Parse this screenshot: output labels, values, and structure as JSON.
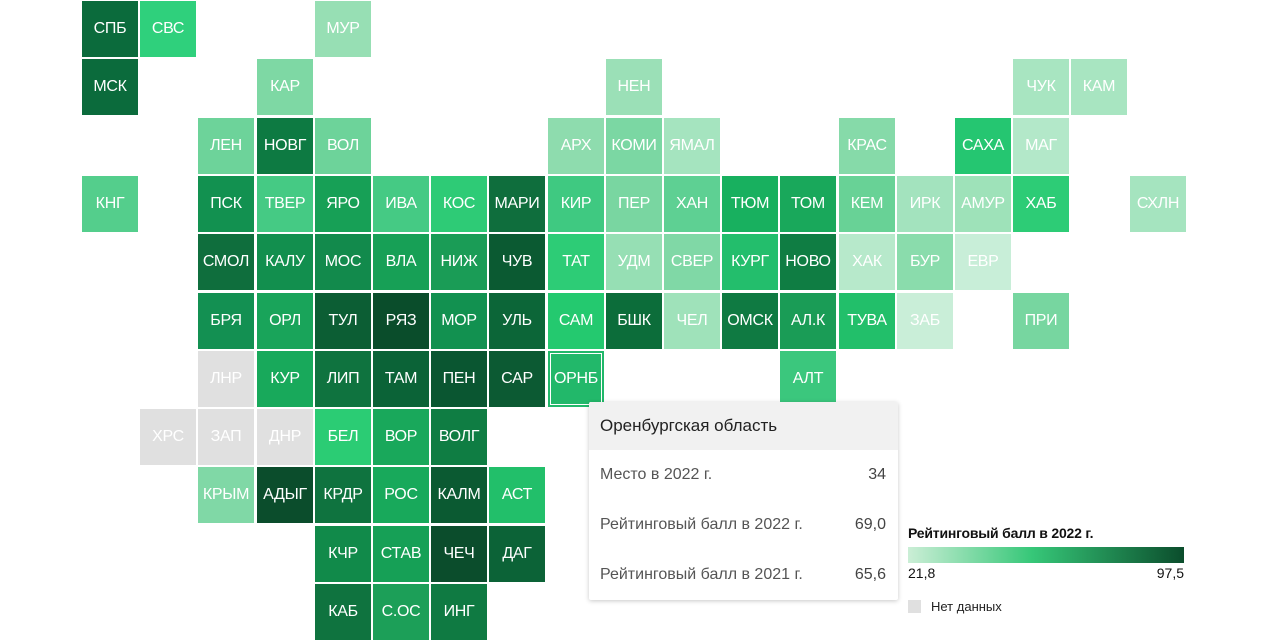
{
  "tiles": [
    {
      "label": "СПБ",
      "col": 0,
      "row": 0,
      "color": "#0b6b3c"
    },
    {
      "label": "СВС",
      "col": 1,
      "row": 0,
      "color": "#2fd07c"
    },
    {
      "label": "МУР",
      "col": 4,
      "row": 0,
      "color": "#97dfb4"
    },
    {
      "label": "МСК",
      "col": 0,
      "row": 1,
      "color": "#0b6b3c"
    },
    {
      "label": "КАР",
      "col": 3,
      "row": 1,
      "color": "#7ed8a4"
    },
    {
      "label": "НЕН",
      "col": 9,
      "row": 1,
      "color": "#9be0b7"
    },
    {
      "label": "ЧУК",
      "col": 16,
      "row": 1,
      "color": "#a8e5c1"
    },
    {
      "label": "КАМ",
      "col": 17,
      "row": 1,
      "color": "#a8e5c1"
    },
    {
      "label": "ЛЕН",
      "col": 2,
      "row": 2,
      "color": "#6dd39a"
    },
    {
      "label": "НОВГ",
      "col": 3,
      "row": 2,
      "color": "#0d7a42"
    },
    {
      "label": "ВОЛ",
      "col": 4,
      "row": 2,
      "color": "#6dd39a"
    },
    {
      "label": "АРХ",
      "col": 8,
      "row": 2,
      "color": "#8edcae"
    },
    {
      "label": "КОМИ",
      "col": 9,
      "row": 2,
      "color": "#7bd7a3"
    },
    {
      "label": "ЯМАЛ",
      "col": 10,
      "row": 2,
      "color": "#a5e4bf"
    },
    {
      "label": "КРАС",
      "col": 13,
      "row": 2,
      "color": "#86daa9"
    },
    {
      "label": "САХА",
      "col": 15,
      "row": 2,
      "color": "#25c671"
    },
    {
      "label": "МАГ",
      "col": 16,
      "row": 2,
      "color": "#b3e8c9"
    },
    {
      "label": "КНГ",
      "col": 0,
      "row": 3,
      "color": "#54ce8c"
    },
    {
      "label": "ПСК",
      "col": 2,
      "row": 3,
      "color": "#129150"
    },
    {
      "label": "ТВЕР",
      "col": 3,
      "row": 3,
      "color": "#45ca84"
    },
    {
      "label": "ЯРО",
      "col": 4,
      "row": 3,
      "color": "#17a056"
    },
    {
      "label": "ИВА",
      "col": 5,
      "row": 3,
      "color": "#45ca84"
    },
    {
      "label": "КОС",
      "col": 6,
      "row": 3,
      "color": "#2ecb76"
    },
    {
      "label": "МАРИ",
      "col": 7,
      "row": 3,
      "color": "#0f6e3d"
    },
    {
      "label": "КИР",
      "col": 8,
      "row": 3,
      "color": "#3fc981"
    },
    {
      "label": "ПЕР",
      "col": 9,
      "row": 3,
      "color": "#79d6a1"
    },
    {
      "label": "ХАН",
      "col": 10,
      "row": 3,
      "color": "#5ed093"
    },
    {
      "label": "ТЮМ",
      "col": 11,
      "row": 3,
      "color": "#18b05f"
    },
    {
      "label": "ТОМ",
      "col": 12,
      "row": 3,
      "color": "#19a85b"
    },
    {
      "label": "КЕМ",
      "col": 13,
      "row": 3,
      "color": "#68d296"
    },
    {
      "label": "ИРК",
      "col": 14,
      "row": 3,
      "color": "#a3e3be"
    },
    {
      "label": "АМУР",
      "col": 15,
      "row": 3,
      "color": "#9ee2b9"
    },
    {
      "label": "ХАБ",
      "col": 16,
      "row": 3,
      "color": "#2dcc76"
    },
    {
      "label": "СХЛН",
      "col": 18,
      "row": 3,
      "color": "#a5e4bf"
    },
    {
      "label": "СМОЛ",
      "col": 2,
      "row": 4,
      "color": "#0f6e3d"
    },
    {
      "label": "КАЛУ",
      "col": 3,
      "row": 4,
      "color": "#128f4e"
    },
    {
      "label": "МОС",
      "col": 4,
      "row": 4,
      "color": "#128a4c"
    },
    {
      "label": "ВЛА",
      "col": 5,
      "row": 4,
      "color": "#17a056"
    },
    {
      "label": "НИЖ",
      "col": 6,
      "row": 4,
      "color": "#1a9c56"
    },
    {
      "label": "ЧУВ",
      "col": 7,
      "row": 4,
      "color": "#0b5a32"
    },
    {
      "label": "ТАТ",
      "col": 8,
      "row": 4,
      "color": "#2dcc76"
    },
    {
      "label": "УДМ",
      "col": 9,
      "row": 4,
      "color": "#96dfb4"
    },
    {
      "label": "СВЕР",
      "col": 10,
      "row": 4,
      "color": "#80d8a6"
    },
    {
      "label": "КУРГ",
      "col": 11,
      "row": 4,
      "color": "#23be6c"
    },
    {
      "label": "НОВО",
      "col": 12,
      "row": 4,
      "color": "#0f7d43"
    },
    {
      "label": "ХАК",
      "col": 13,
      "row": 4,
      "color": "#b7e9cb"
    },
    {
      "label": "БУР",
      "col": 14,
      "row": 4,
      "color": "#8adcac"
    },
    {
      "label": "ЕВР",
      "col": 15,
      "row": 4,
      "color": "#c8eed8"
    },
    {
      "label": "БРЯ",
      "col": 2,
      "row": 5,
      "color": "#139052"
    },
    {
      "label": "ОРЛ",
      "col": 3,
      "row": 5,
      "color": "#19a45a"
    },
    {
      "label": "ТУЛ",
      "col": 4,
      "row": 5,
      "color": "#0c5e34"
    },
    {
      "label": "РЯЗ",
      "col": 5,
      "row": 5,
      "color": "#0a4d2b"
    },
    {
      "label": "МОР",
      "col": 6,
      "row": 5,
      "color": "#129150"
    },
    {
      "label": "УЛЬ",
      "col": 7,
      "row": 5,
      "color": "#0c6638"
    },
    {
      "label": "САМ",
      "col": 8,
      "row": 5,
      "color": "#24c96f"
    },
    {
      "label": "БШК",
      "col": 9,
      "row": 5,
      "color": "#0c6d3a"
    },
    {
      "label": "ЧЕЛ",
      "col": 10,
      "row": 5,
      "color": "#9fe2ba"
    },
    {
      "label": "ОМСК",
      "col": 11,
      "row": 5,
      "color": "#0f7a42"
    },
    {
      "label": "АЛ.К",
      "col": 12,
      "row": 5,
      "color": "#1a9c56"
    },
    {
      "label": "ТУВА",
      "col": 13,
      "row": 5,
      "color": "#22bf6a"
    },
    {
      "label": "ЗАБ",
      "col": 14,
      "row": 5,
      "color": "#c9eed8"
    },
    {
      "label": "ПРИ",
      "col": 16,
      "row": 5,
      "color": "#77d6a0"
    },
    {
      "label": "ЛНР",
      "col": 2,
      "row": 6,
      "color": "#e0e0e0"
    },
    {
      "label": "КУР",
      "col": 3,
      "row": 6,
      "color": "#18a95b"
    },
    {
      "label": "ЛИП",
      "col": 4,
      "row": 6,
      "color": "#0f733f"
    },
    {
      "label": "ТАМ",
      "col": 5,
      "row": 6,
      "color": "#0b6337"
    },
    {
      "label": "ПЕН",
      "col": 6,
      "row": 6,
      "color": "#0a5631"
    },
    {
      "label": "САР",
      "col": 7,
      "row": 6,
      "color": "#0c5a33"
    },
    {
      "label": "ОРНБ",
      "col": 8,
      "row": 6,
      "color": "#22b86a",
      "selected": true
    },
    {
      "label": "АЛТ",
      "col": 12,
      "row": 6,
      "color": "#3bc77d"
    },
    {
      "label": "ХРС",
      "col": 1,
      "row": 7,
      "color": "#e0e0e0"
    },
    {
      "label": "ЗАП",
      "col": 2,
      "row": 7,
      "color": "#e0e0e0"
    },
    {
      "label": "ДНР",
      "col": 3,
      "row": 7,
      "color": "#e0e0e0"
    },
    {
      "label": "БЕЛ",
      "col": 4,
      "row": 7,
      "color": "#2bcc74"
    },
    {
      "label": "ВОР",
      "col": 5,
      "row": 7,
      "color": "#19a85b"
    },
    {
      "label": "ВОЛГ",
      "col": 6,
      "row": 7,
      "color": "#0f7d43"
    },
    {
      "label": "КРЫМ",
      "col": 2,
      "row": 8,
      "color": "#80d8a6"
    },
    {
      "label": "АДЫГ",
      "col": 3,
      "row": 8,
      "color": "#0b4d2c"
    },
    {
      "label": "КРДР",
      "col": 4,
      "row": 8,
      "color": "#0f733f"
    },
    {
      "label": "РОС",
      "col": 5,
      "row": 8,
      "color": "#18a95b"
    },
    {
      "label": "КАЛМ",
      "col": 6,
      "row": 8,
      "color": "#0b5a32"
    },
    {
      "label": "АСТ",
      "col": 7,
      "row": 8,
      "color": "#22bf6a"
    },
    {
      "label": "КЧР",
      "col": 4,
      "row": 9,
      "color": "#118a4a"
    },
    {
      "label": "СТАВ",
      "col": 5,
      "row": 9,
      "color": "#16a056"
    },
    {
      "label": "ЧЕЧ",
      "col": 6,
      "row": 9,
      "color": "#0b4d2c"
    },
    {
      "label": "ДАГ",
      "col": 7,
      "row": 9,
      "color": "#0c6337"
    },
    {
      "label": "КАБ",
      "col": 4,
      "row": 10,
      "color": "#0f733f"
    },
    {
      "label": "С.ОС",
      "col": 5,
      "row": 10,
      "color": "#1c9f58"
    },
    {
      "label": "ИНГ",
      "col": 6,
      "row": 10,
      "color": "#0f7a42"
    }
  ],
  "tooltip": {
    "title": "Оренбургская область",
    "rows": [
      {
        "label": "Место в 2022 г.",
        "value": "34"
      },
      {
        "label": "Рейтинговый балл в 2022 г.",
        "value": "69,0"
      },
      {
        "label": "Рейтинговый балл в 2021 г.",
        "value": "65,6"
      }
    ]
  },
  "legend": {
    "title": "Рейтинговый балл в 2022 г.",
    "min": "21,8",
    "max": "97,5",
    "colors": {
      "low": "#cbeed6",
      "mid": "#36c778",
      "high": "#0b4d2c"
    },
    "no_data_label": "Нет данных",
    "no_data_color": "#e0e0e0"
  }
}
